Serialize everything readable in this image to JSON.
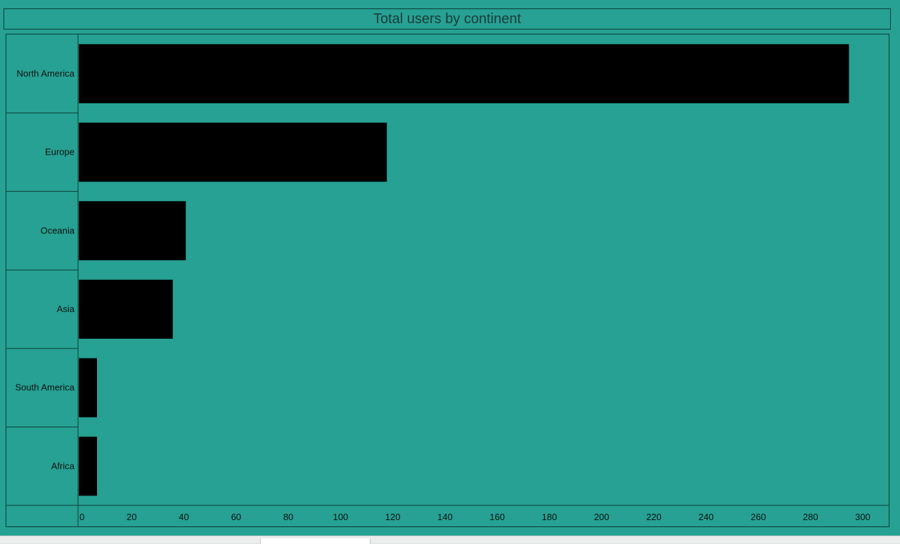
{
  "chart_data": {
    "type": "bar",
    "orientation": "horizontal",
    "title": "Total users by continent",
    "xlabel": "",
    "ylabel": "",
    "categories": [
      "North America",
      "Europe",
      "Oceania",
      "Asia",
      "South America",
      "Africa"
    ],
    "values": [
      295,
      118,
      41,
      36,
      7,
      7
    ],
    "xlim": [
      0,
      305
    ],
    "xticks": [
      0,
      20,
      40,
      60,
      80,
      100,
      120,
      140,
      160,
      180,
      200,
      220,
      240,
      260,
      280,
      300
    ],
    "grid": false,
    "legend": "none",
    "colors": {
      "background": "#26a193",
      "bar": "#000000",
      "border": "#0d3d37",
      "text": "#111111",
      "title": "#1d3b38"
    }
  }
}
